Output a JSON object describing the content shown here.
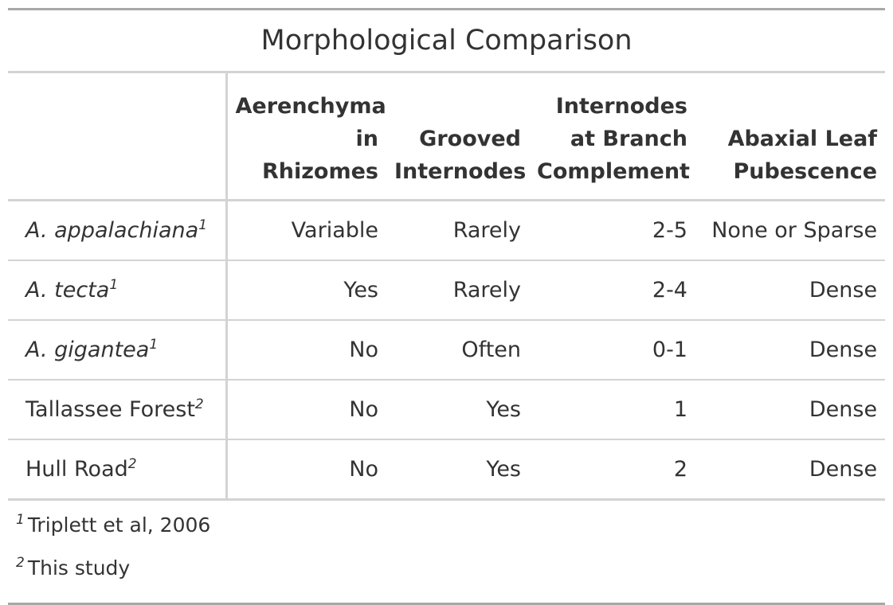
{
  "table": {
    "title": "Morphological Comparison",
    "columns": [
      {
        "line1": "",
        "line2": "",
        "line3": ""
      },
      {
        "line1": "",
        "line2": "Aerenchyma",
        "line3": "in Rhizomes"
      },
      {
        "line1": "",
        "line2": "Grooved",
        "line3": "Internodes"
      },
      {
        "line1": "Internodes",
        "line2": "at Branch",
        "line3": "Complement"
      },
      {
        "line1": "",
        "line2": "Abaxial Leaf",
        "line3": "Pubescence"
      }
    ],
    "rows": [
      {
        "name": "A. appalachiana",
        "mark": "1",
        "cells": [
          "Variable",
          "Rarely",
          "2-5",
          "None or Sparse"
        ]
      },
      {
        "name": "A. tecta",
        "mark": "1",
        "cells": [
          "Yes",
          "Rarely",
          "2-4",
          "Dense"
        ]
      },
      {
        "name": "A. gigantea",
        "mark": "1",
        "cells": [
          "No",
          "Often",
          "0-1",
          "Dense"
        ]
      },
      {
        "name": "Tallassee Forest",
        "mark": "2",
        "cells": [
          "No",
          "Yes",
          "1",
          "Dense"
        ]
      },
      {
        "name": "Hull Road",
        "mark": "2",
        "cells": [
          "No",
          "Yes",
          "2",
          "Dense"
        ]
      }
    ],
    "footnotes": [
      {
        "mark": "1",
        "text": "Triplett et al, 2006"
      },
      {
        "mark": "2",
        "text": "This study"
      }
    ]
  },
  "colors": {
    "text": "#333333",
    "outer_rule": "#a8a8a8",
    "inner_rule": "#d3d3d3"
  }
}
